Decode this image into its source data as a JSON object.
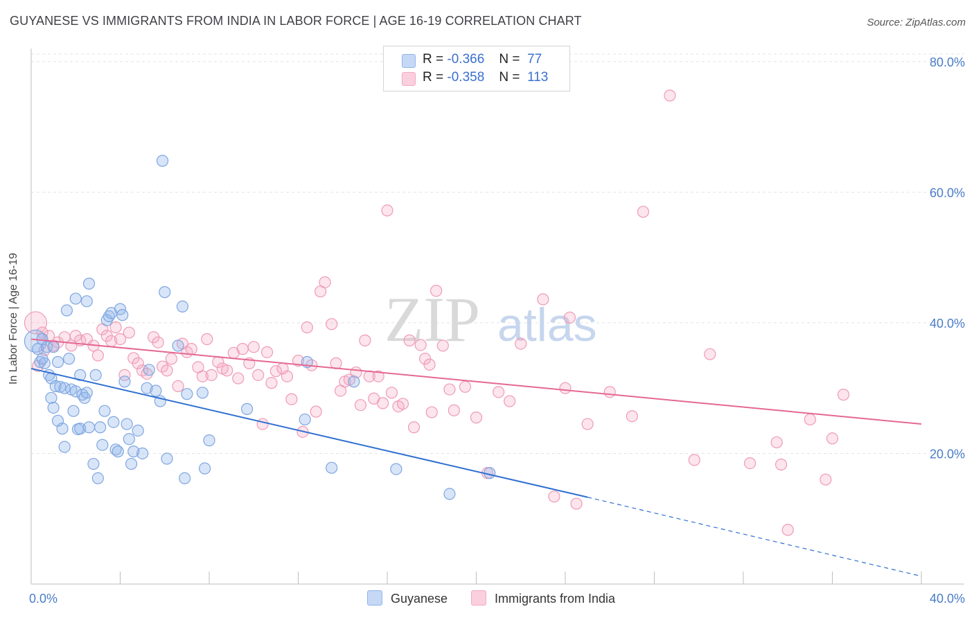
{
  "title": "GUYANESE VS IMMIGRANTS FROM INDIA IN LABOR FORCE | AGE 16-19 CORRELATION CHART",
  "source": "Source: ZipAtlas.com",
  "watermark": {
    "part1": "ZIP",
    "part2": "atlas"
  },
  "legend_top": [
    {
      "r_label": "R =",
      "r_value": "-0.366",
      "n_label": "N =",
      "n_value": "77"
    },
    {
      "r_label": "R =",
      "r_value": "-0.358",
      "n_label": "N =",
      "n_value": "113"
    }
  ],
  "legend_bottom": [
    "Guyanese",
    "Immigrants from India"
  ],
  "chart_data": {
    "type": "scatter",
    "xlabel": "",
    "ylabel": "In Labor Force | Age 16-19",
    "xlim": [
      0,
      40
    ],
    "ylim": [
      0,
      82
    ],
    "x_tick_labels": [
      "0.0%",
      "40.0%"
    ],
    "y_ticks": [
      20,
      40,
      60,
      80
    ],
    "y_tick_labels": [
      "20.0%",
      "40.0%",
      "60.0%",
      "80.0%"
    ],
    "grid": true,
    "legend_placement": "top-center",
    "colors": {
      "guyanese": "#8fb4ea",
      "india": "#f4a8c0",
      "guyanese_line": "#2f6fd1",
      "india_line": "#e46892",
      "tick_text": "#4a7cc8"
    },
    "series": [
      {
        "name": "Guyanese",
        "R": -0.366,
        "N": 77,
        "trend": {
          "x0": 0,
          "y0": 33.0,
          "x1": 25.0,
          "y1": 13.3,
          "dash_to_x": 40,
          "dash_to_y": 1.2
        },
        "points": [
          [
            0.2,
            37.2
          ],
          [
            0.3,
            36.0
          ],
          [
            0.4,
            34.0
          ],
          [
            0.5,
            37.5
          ],
          [
            0.6,
            33.8
          ],
          [
            0.7,
            36.3
          ],
          [
            0.8,
            32.0
          ],
          [
            0.9,
            31.5
          ],
          [
            1.0,
            36.3
          ],
          [
            1.1,
            30.3
          ],
          [
            1.2,
            34.0
          ],
          [
            1.3,
            30.2
          ],
          [
            1.4,
            23.8
          ],
          [
            1.5,
            21.0
          ],
          [
            1.6,
            41.9
          ],
          [
            1.7,
            34.5
          ],
          [
            1.8,
            29.8
          ],
          [
            1.9,
            26.5
          ],
          [
            2.0,
            29.5
          ],
          [
            2.1,
            23.7
          ],
          [
            2.2,
            23.8
          ],
          [
            2.3,
            29.0
          ],
          [
            2.4,
            28.5
          ],
          [
            2.5,
            29.3
          ],
          [
            2.6,
            24.0
          ],
          [
            2.8,
            18.4
          ],
          [
            2.9,
            32.0
          ],
          [
            3.0,
            16.2
          ],
          [
            3.1,
            24.0
          ],
          [
            3.2,
            21.3
          ],
          [
            3.4,
            40.4
          ],
          [
            3.5,
            41.0
          ],
          [
            3.6,
            41.5
          ],
          [
            3.7,
            24.8
          ],
          [
            3.8,
            20.6
          ],
          [
            3.9,
            20.3
          ],
          [
            4.0,
            42.1
          ],
          [
            4.1,
            41.2
          ],
          [
            4.2,
            31.0
          ],
          [
            4.3,
            24.5
          ],
          [
            4.4,
            22.2
          ],
          [
            4.5,
            18.4
          ],
          [
            4.6,
            20.3
          ],
          [
            5.0,
            20.0
          ],
          [
            5.2,
            30.0
          ],
          [
            5.3,
            32.8
          ],
          [
            5.6,
            29.6
          ],
          [
            5.8,
            28.0
          ],
          [
            5.9,
            64.8
          ],
          [
            6.0,
            44.7
          ],
          [
            6.1,
            19.2
          ],
          [
            6.6,
            36.5
          ],
          [
            6.8,
            42.5
          ],
          [
            6.9,
            16.2
          ],
          [
            7.0,
            29.1
          ],
          [
            7.7,
            29.3
          ],
          [
            7.8,
            17.7
          ],
          [
            8.0,
            22.0
          ],
          [
            2.5,
            43.3
          ],
          [
            2.0,
            43.7
          ],
          [
            9.7,
            26.8
          ],
          [
            12.4,
            34.0
          ],
          [
            12.3,
            25.2
          ],
          [
            13.5,
            17.8
          ],
          [
            14.5,
            31.0
          ],
          [
            16.4,
            17.6
          ],
          [
            18.8,
            13.8
          ],
          [
            20.6,
            17.0
          ],
          [
            1.2,
            25.0
          ],
          [
            1.5,
            30.0
          ],
          [
            2.6,
            46.0
          ],
          [
            3.3,
            26.5
          ],
          [
            0.5,
            34.5
          ],
          [
            0.9,
            28.5
          ],
          [
            4.8,
            23.5
          ],
          [
            2.2,
            32.0
          ],
          [
            1.0,
            27.0
          ]
        ]
      },
      {
        "name": "Immigrants from India",
        "R": -0.358,
        "N": 113,
        "trend": {
          "x0": 0,
          "y0": 37.5,
          "x1": 40,
          "y1": 24.5
        },
        "points": [
          [
            0.2,
            40.0
          ],
          [
            0.5,
            38.5
          ],
          [
            0.8,
            38.0
          ],
          [
            1.0,
            36.5
          ],
          [
            1.2,
            37.0
          ],
          [
            1.5,
            37.8
          ],
          [
            1.8,
            36.5
          ],
          [
            2.0,
            38.0
          ],
          [
            2.2,
            37.3
          ],
          [
            2.5,
            37.5
          ],
          [
            2.8,
            36.5
          ],
          [
            3.0,
            35.0
          ],
          [
            3.2,
            39.0
          ],
          [
            3.4,
            38.0
          ],
          [
            3.6,
            37.2
          ],
          [
            3.8,
            39.3
          ],
          [
            4.0,
            37.5
          ],
          [
            4.2,
            32.0
          ],
          [
            4.4,
            38.5
          ],
          [
            4.6,
            34.6
          ],
          [
            4.8,
            33.8
          ],
          [
            5.0,
            32.7
          ],
          [
            5.2,
            32.2
          ],
          [
            5.5,
            37.8
          ],
          [
            5.7,
            37.0
          ],
          [
            5.9,
            33.3
          ],
          [
            6.1,
            32.7
          ],
          [
            6.3,
            34.5
          ],
          [
            6.6,
            30.3
          ],
          [
            6.8,
            36.8
          ],
          [
            7.0,
            35.5
          ],
          [
            7.2,
            36.0
          ],
          [
            7.5,
            33.2
          ],
          [
            7.7,
            31.8
          ],
          [
            7.9,
            37.5
          ],
          [
            8.1,
            32.0
          ],
          [
            8.4,
            34.0
          ],
          [
            8.6,
            33.0
          ],
          [
            8.8,
            32.7
          ],
          [
            9.1,
            35.4
          ],
          [
            9.3,
            31.5
          ],
          [
            9.5,
            36.0
          ],
          [
            9.8,
            33.8
          ],
          [
            10.0,
            36.3
          ],
          [
            10.2,
            32.0
          ],
          [
            10.4,
            24.5
          ],
          [
            10.6,
            35.5
          ],
          [
            10.8,
            30.8
          ],
          [
            11.0,
            32.6
          ],
          [
            11.3,
            33.0
          ],
          [
            11.5,
            31.8
          ],
          [
            11.7,
            28.3
          ],
          [
            12.0,
            34.2
          ],
          [
            12.2,
            23.3
          ],
          [
            12.4,
            39.3
          ],
          [
            12.6,
            33.5
          ],
          [
            12.8,
            26.4
          ],
          [
            13.0,
            44.8
          ],
          [
            13.2,
            46.2
          ],
          [
            13.5,
            39.8
          ],
          [
            13.7,
            33.8
          ],
          [
            13.9,
            29.6
          ],
          [
            14.1,
            31.0
          ],
          [
            14.3,
            31.3
          ],
          [
            14.6,
            32.4
          ],
          [
            14.8,
            27.4
          ],
          [
            15.0,
            37.3
          ],
          [
            15.2,
            31.8
          ],
          [
            15.4,
            28.4
          ],
          [
            15.6,
            31.8
          ],
          [
            15.8,
            27.7
          ],
          [
            16.0,
            57.2
          ],
          [
            16.2,
            29.3
          ],
          [
            16.5,
            27.2
          ],
          [
            16.7,
            27.6
          ],
          [
            17.0,
            37.3
          ],
          [
            17.2,
            24.0
          ],
          [
            17.5,
            36.6
          ],
          [
            17.7,
            34.5
          ],
          [
            17.9,
            33.6
          ],
          [
            18.0,
            26.3
          ],
          [
            18.2,
            44.9
          ],
          [
            18.5,
            36.5
          ],
          [
            18.8,
            29.8
          ],
          [
            19.0,
            26.6
          ],
          [
            19.5,
            30.2
          ],
          [
            20.0,
            25.5
          ],
          [
            20.5,
            17.0
          ],
          [
            21.0,
            29.4
          ],
          [
            21.5,
            28.0
          ],
          [
            22.0,
            36.8
          ],
          [
            23.0,
            43.6
          ],
          [
            23.5,
            13.4
          ],
          [
            24.0,
            30.0
          ],
          [
            24.2,
            40.8
          ],
          [
            24.5,
            12.3
          ],
          [
            25.0,
            24.5
          ],
          [
            26.0,
            29.4
          ],
          [
            27.0,
            25.7
          ],
          [
            27.5,
            57.0
          ],
          [
            28.7,
            74.8
          ],
          [
            29.8,
            19.0
          ],
          [
            30.5,
            35.2
          ],
          [
            32.3,
            18.5
          ],
          [
            33.5,
            21.7
          ],
          [
            33.7,
            18.3
          ],
          [
            34.0,
            8.3
          ],
          [
            35.0,
            25.2
          ],
          [
            35.7,
            16.0
          ],
          [
            36.0,
            22.3
          ],
          [
            36.5,
            29.0
          ],
          [
            0.3,
            33.4
          ],
          [
            0.6,
            35.8
          ]
        ]
      }
    ]
  }
}
